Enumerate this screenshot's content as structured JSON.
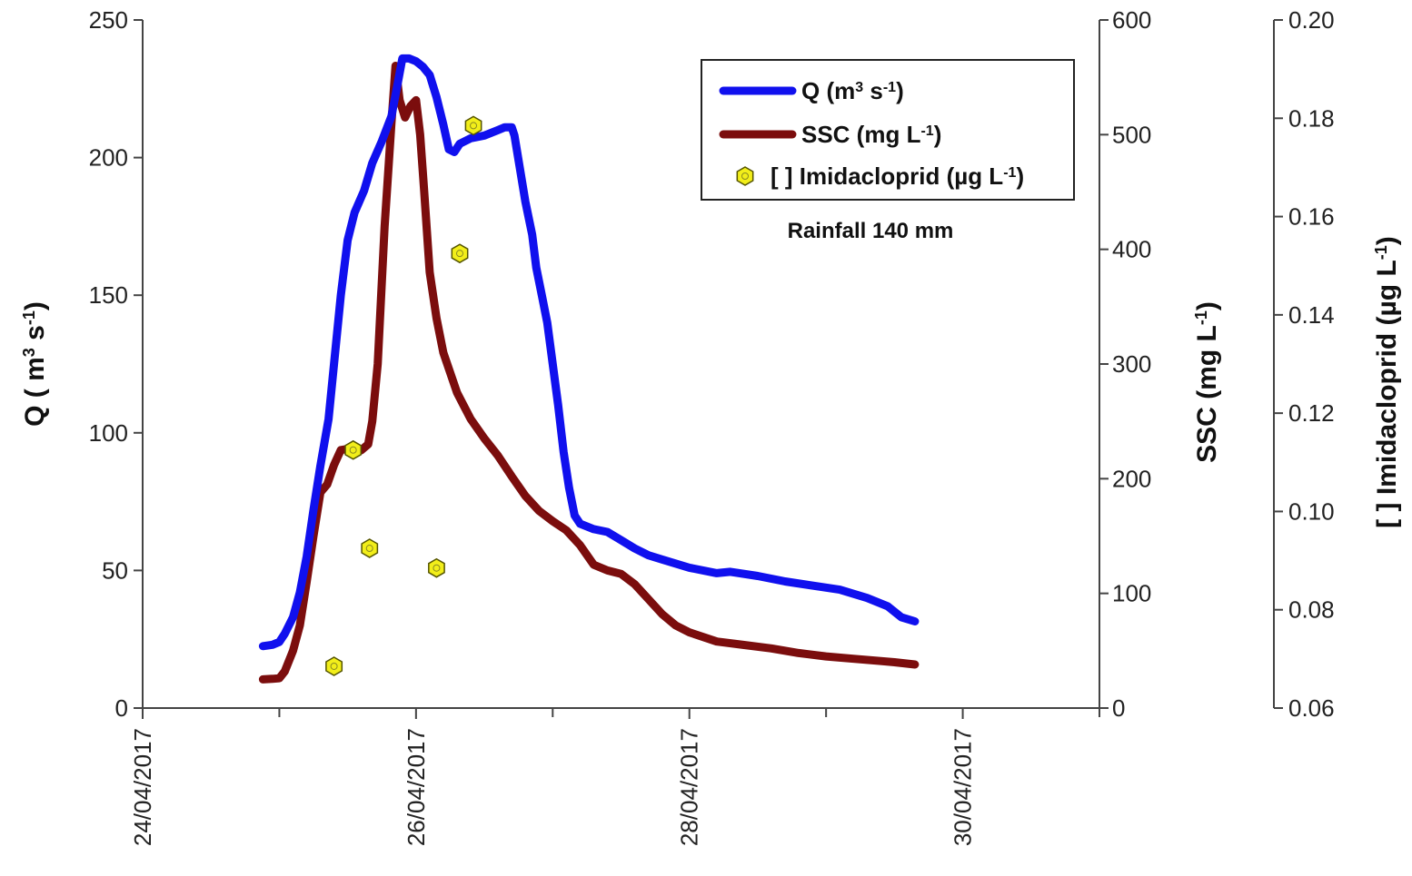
{
  "chart_data": {
    "type": "line",
    "colors": {
      "q": "#1010ee",
      "ssc": "#7b0d0d",
      "imida_fill": "#f2ee1a",
      "imida_stroke": "#555500",
      "axis": "#444444"
    },
    "x_axis": {
      "type": "date",
      "range": [
        "24/04/2017",
        "01/05/2017"
      ],
      "tick_labels": [
        "24/04/2017",
        "26/04/2017",
        "28/04/2017",
        "30/04/2017"
      ],
      "tick_label_days": [
        0,
        2,
        4,
        6
      ],
      "minor_tick_days": [
        1,
        3,
        5,
        7
      ]
    },
    "y_left": {
      "label": "Q ( m³ s⁻¹)",
      "label_main": "Q ( m",
      "label_sup1": "3",
      "label_mid": " s",
      "label_sup2": "-1",
      "label_end": ")",
      "range": [
        0,
        250
      ],
      "ticks": [
        0,
        50,
        100,
        150,
        200,
        250
      ]
    },
    "y_right1": {
      "label": "SSC (mg L⁻¹)",
      "label_main": "SSC (mg L",
      "label_sup": "-1",
      "label_end": ")",
      "range": [
        0,
        600
      ],
      "ticks": [
        0,
        100,
        200,
        300,
        400,
        500,
        600
      ]
    },
    "y_right2": {
      "label": "[ ] Imidacloprid (µg L⁻¹)",
      "label_main": "[ ] Imidacloprid (µg L",
      "label_sup": "-1",
      "label_end": ")",
      "range": [
        0.06,
        0.2
      ],
      "ticks": [
        "0.06",
        "0.08",
        "0.10",
        "0.12",
        "0.14",
        "0.16",
        "0.18",
        "0.20"
      ]
    },
    "annotation": "Rainfall 140 mm",
    "legend_position": "top-right",
    "legend": [
      {
        "key": "q",
        "label_main": "Q (m",
        "sup1": "3",
        "mid": " s",
        "sup2": "-1",
        "end": ")"
      },
      {
        "key": "ssc",
        "label_main": "SSC (mg L",
        "sup1": "-1",
        "end": ")"
      },
      {
        "key": "imida",
        "label_main": "[ ] Imidacloprid (µg L",
        "sup1": "-1",
        "end": ")"
      }
    ],
    "series": [
      {
        "name": "Q (m³ s⁻¹)",
        "axis": "y_left",
        "points": [
          [
            0.88,
            22.5
          ],
          [
            0.95,
            23
          ],
          [
            1.0,
            24
          ],
          [
            1.04,
            27
          ],
          [
            1.1,
            33
          ],
          [
            1.15,
            42
          ],
          [
            1.2,
            55
          ],
          [
            1.25,
            72
          ],
          [
            1.3,
            88
          ],
          [
            1.36,
            105
          ],
          [
            1.4,
            125
          ],
          [
            1.45,
            150
          ],
          [
            1.5,
            170
          ],
          [
            1.55,
            180
          ],
          [
            1.62,
            188
          ],
          [
            1.68,
            198
          ],
          [
            1.75,
            206
          ],
          [
            1.82,
            215
          ],
          [
            1.87,
            228
          ],
          [
            1.9,
            236
          ],
          [
            1.95,
            236
          ],
          [
            2.0,
            235
          ],
          [
            2.05,
            233
          ],
          [
            2.1,
            230
          ],
          [
            2.15,
            222
          ],
          [
            2.2,
            212
          ],
          [
            2.24,
            203
          ],
          [
            2.28,
            202
          ],
          [
            2.32,
            205
          ],
          [
            2.4,
            207
          ],
          [
            2.5,
            208
          ],
          [
            2.6,
            210
          ],
          [
            2.65,
            211
          ],
          [
            2.7,
            211
          ],
          [
            2.72,
            208
          ],
          [
            2.76,
            196
          ],
          [
            2.8,
            184
          ],
          [
            2.85,
            172
          ],
          [
            2.88,
            160
          ],
          [
            2.92,
            150
          ],
          [
            2.96,
            140
          ],
          [
            3.0,
            125
          ],
          [
            3.04,
            110
          ],
          [
            3.08,
            93
          ],
          [
            3.12,
            80
          ],
          [
            3.16,
            70
          ],
          [
            3.2,
            67
          ],
          [
            3.3,
            65
          ],
          [
            3.4,
            64
          ],
          [
            3.5,
            61
          ],
          [
            3.6,
            58
          ],
          [
            3.7,
            55.5
          ],
          [
            3.8,
            54
          ],
          [
            4.0,
            51
          ],
          [
            4.2,
            49
          ],
          [
            4.3,
            49.5
          ],
          [
            4.5,
            48
          ],
          [
            4.7,
            46
          ],
          [
            4.9,
            44.5
          ],
          [
            5.1,
            43
          ],
          [
            5.3,
            40
          ],
          [
            5.45,
            37
          ],
          [
            5.55,
            33
          ],
          [
            5.65,
            31.5
          ]
        ]
      },
      {
        "name": "SSC (mg L⁻¹)",
        "axis": "y_right1",
        "points": [
          [
            0.88,
            25
          ],
          [
            0.95,
            25.5
          ],
          [
            1.0,
            26
          ],
          [
            1.04,
            32
          ],
          [
            1.1,
            50
          ],
          [
            1.15,
            72
          ],
          [
            1.2,
            110
          ],
          [
            1.25,
            150
          ],
          [
            1.3,
            188
          ],
          [
            1.35,
            195
          ],
          [
            1.4,
            212
          ],
          [
            1.45,
            225
          ],
          [
            1.5,
            226
          ],
          [
            1.55,
            222
          ],
          [
            1.6,
            225
          ],
          [
            1.65,
            230
          ],
          [
            1.68,
            250
          ],
          [
            1.72,
            300
          ],
          [
            1.77,
            420
          ],
          [
            1.82,
            510
          ],
          [
            1.85,
            560
          ],
          [
            1.88,
            530
          ],
          [
            1.92,
            515
          ],
          [
            1.96,
            525
          ],
          [
            2.0,
            530
          ],
          [
            2.03,
            500
          ],
          [
            2.06,
            450
          ],
          [
            2.1,
            380
          ],
          [
            2.15,
            340
          ],
          [
            2.2,
            310
          ],
          [
            2.3,
            275
          ],
          [
            2.4,
            252
          ],
          [
            2.5,
            235
          ],
          [
            2.6,
            220
          ],
          [
            2.7,
            202
          ],
          [
            2.8,
            185
          ],
          [
            2.9,
            172
          ],
          [
            3.0,
            163
          ],
          [
            3.1,
            155
          ],
          [
            3.2,
            142
          ],
          [
            3.3,
            125
          ],
          [
            3.4,
            120
          ],
          [
            3.5,
            117
          ],
          [
            3.6,
            108
          ],
          [
            3.7,
            95
          ],
          [
            3.8,
            82
          ],
          [
            3.9,
            72
          ],
          [
            4.0,
            66
          ],
          [
            4.2,
            58
          ],
          [
            4.4,
            55
          ],
          [
            4.6,
            52
          ],
          [
            4.8,
            48
          ],
          [
            5.0,
            45
          ],
          [
            5.2,
            43
          ],
          [
            5.4,
            41
          ],
          [
            5.5,
            40
          ],
          [
            5.65,
            38
          ]
        ]
      },
      {
        "name": "[ ] Imidacloprid (µg L⁻¹)",
        "axis": "y_right2",
        "points": [
          [
            1.4,
            0.0685
          ],
          [
            1.54,
            0.1125
          ],
          [
            1.66,
            0.0925
          ],
          [
            2.15,
            0.0885
          ],
          [
            2.32,
            0.1525
          ],
          [
            2.42,
            0.1785
          ]
        ]
      }
    ]
  }
}
